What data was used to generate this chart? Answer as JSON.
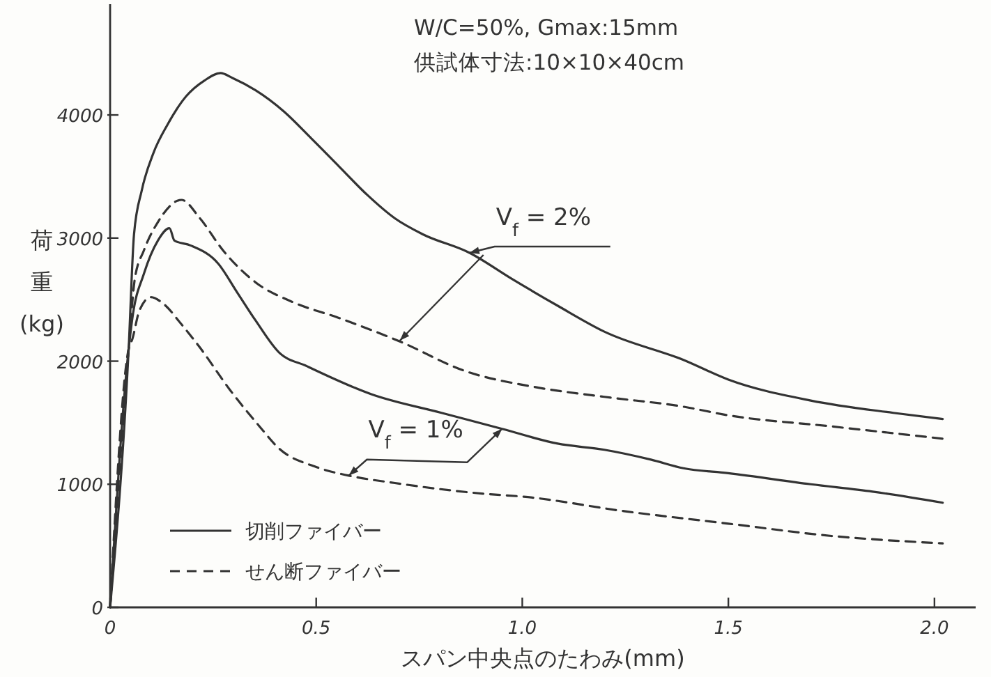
{
  "chart_data": {
    "type": "line",
    "title": "W/C=50%, Gmax:15mm",
    "subtitle": "供試体寸法:10×10×40cm",
    "xlabel": "スパン中央点のたわみ(mm)",
    "ylabel": "荷重(kg)",
    "xlim": [
      0,
      2.1
    ],
    "ylim": [
      0,
      4900
    ],
    "xticks": [
      0,
      0.5,
      {
        "value": 1,
        "label": "1.0"
      },
      1.5,
      {
        "value": 2,
        "label": "2.0"
      }
    ],
    "yticks": [
      0,
      1000,
      2000,
      3000,
      4000
    ],
    "legend": "bottom left",
    "series": [
      {
        "name": "切削ファイバー",
        "color": "#333333",
        "line_style": "solid",
        "x": [
          0,
          0.045,
          0.058,
          0.077,
          0.105,
          0.139,
          0.184,
          0.229,
          0.268,
          0.297,
          0.353,
          0.421,
          0.488,
          0.556,
          0.624,
          0.691,
          0.759,
          0.872,
          0.974,
          1.086,
          1.199,
          1.391,
          1.5,
          1.7,
          1.9,
          2.02
        ],
        "values": [
          0,
          2100,
          3030,
          3390,
          3690,
          3920,
          4150,
          4280,
          4340,
          4300,
          4200,
          4030,
          3810,
          3580,
          3350,
          3160,
          3030,
          2880,
          2670,
          2450,
          2240,
          2010,
          1850,
          1680,
          1580,
          1530
        ]
      },
      {
        "name": "せん断ファイバー",
        "color": "#333333",
        "line_style": "dashed",
        "x": [
          0,
          0.045,
          0.06,
          0.082,
          0.116,
          0.173,
          0.218,
          0.274,
          0.353,
          0.443,
          0.556,
          0.703,
          0.861,
          1.03,
          1.199,
          1.391,
          1.5,
          1.75,
          2.02
        ],
        "values": [
          0,
          2100,
          2670,
          2900,
          3130,
          3310,
          3160,
          2900,
          2640,
          2480,
          2350,
          2160,
          1920,
          1790,
          1710,
          1630,
          1560,
          1470,
          1370
        ]
      },
      {
        "color": "#333333",
        "line_style": "solid",
        "x": [
          0,
          0.045,
          0.054,
          0.082,
          0.116,
          0.144,
          0.156,
          0.195,
          0.263,
          0.308,
          0.353,
          0.41,
          0.477,
          0.635,
          0.804,
          0.951,
          1.086,
          1.199,
          1.312,
          1.391,
          1.5,
          1.7,
          1.85,
          2.02
        ],
        "values": [
          0,
          2100,
          2350,
          2710,
          2980,
          3080,
          2980,
          2940,
          2790,
          2560,
          2330,
          2070,
          1960,
          1730,
          1580,
          1450,
          1330,
          1280,
          1200,
          1130,
          1090,
          1000,
          940,
          850
        ]
      },
      {
        "color": "#333333",
        "line_style": "dashed",
        "x": [
          0,
          0.045,
          0.054,
          0.071,
          0.099,
          0.128,
          0.173,
          0.218,
          0.29,
          0.36,
          0.41,
          0.5,
          0.579,
          0.691,
          0.917,
          1.0,
          1.25,
          1.5,
          1.75,
          2.02
        ],
        "values": [
          0,
          2100,
          2180,
          2410,
          2520,
          2470,
          2300,
          2110,
          1770,
          1480,
          1290,
          1140,
          1070,
          1010,
          920,
          900,
          780,
          680,
          580,
          520
        ]
      }
    ],
    "annotations": [
      {
        "text": "V$_{f}$ = 2%",
        "x": 0.872,
        "y": 2880
      },
      {
        "text": "V$_{f}$ = 1%",
        "x": 0.951,
        "y": 1450
      }
    ]
  }
}
